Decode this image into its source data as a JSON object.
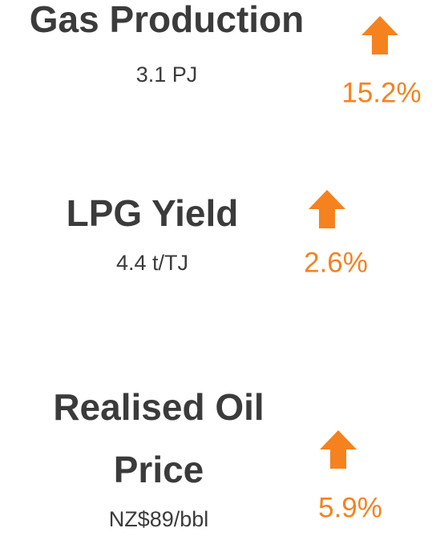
{
  "items": [
    {
      "title_lines": [
        "Gas Production"
      ],
      "value": "3.1 PJ",
      "change": "15.2%"
    },
    {
      "title_lines": [
        "LPG Yield"
      ],
      "value": "4.4 t/TJ",
      "change": "2.6%"
    },
    {
      "title_lines": [
        "Realised Oil",
        "Price"
      ],
      "value": "NZ$89/bbl",
      "change": "5.9%"
    }
  ]
}
